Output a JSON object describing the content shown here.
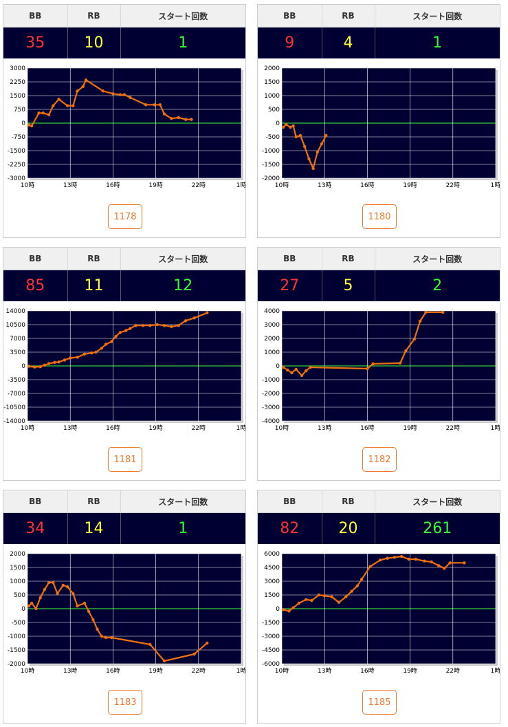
{
  "headers": {
    "bb": "BB",
    "rb": "RB",
    "start": "スタート回数"
  },
  "accent_colors": {
    "bb": "#ff3333",
    "rb": "#ffff33",
    "start": "#33ff33",
    "line": "#f07010",
    "zero_line": "#33cc33",
    "plot_bg": "#000033"
  },
  "x_ticks": [
    "10時",
    "13時",
    "16時",
    "19時",
    "22時",
    "1時"
  ],
  "panels": [
    {
      "bb": "35",
      "rb": "10",
      "start": "1",
      "machine": "1178"
    },
    {
      "bb": "9",
      "rb": "4",
      "start": "1",
      "machine": "1180"
    },
    {
      "bb": "85",
      "rb": "11",
      "start": "12",
      "machine": "1181"
    },
    {
      "bb": "27",
      "rb": "5",
      "start": "2",
      "machine": "1182"
    },
    {
      "bb": "34",
      "rb": "14",
      "start": "1",
      "machine": "1183"
    },
    {
      "bb": "82",
      "rb": "20",
      "start": "261",
      "machine": "1185"
    }
  ],
  "chart_data": [
    {
      "type": "line",
      "xlim": [
        10,
        25
      ],
      "ylim": [
        -3000,
        3000
      ],
      "y_ticks": [
        "3000",
        "2250",
        "1500",
        "750",
        "0",
        "-750",
        "-1500",
        "-2250",
        "-3000"
      ],
      "x": [
        10.1,
        10.3,
        10.8,
        11.1,
        11.5,
        11.8,
        12.2,
        12.8,
        13.2,
        13.5,
        13.9,
        14.1,
        15.3,
        16.0,
        16.5,
        16.8,
        17.2,
        18.3,
        18.9,
        19.3,
        19.6,
        20.1,
        20.6,
        21.1,
        21.5
      ],
      "y": [
        -100,
        -150,
        550,
        550,
        450,
        950,
        1300,
        950,
        950,
        1750,
        2000,
        2350,
        1750,
        1600,
        1550,
        1550,
        1400,
        1000,
        1000,
        1000,
        500,
        250,
        300,
        200,
        200
      ]
    },
    {
      "type": "line",
      "xlim": [
        10,
        25
      ],
      "ylim": [
        -2000,
        2000
      ],
      "y_ticks": [
        "2000",
        "1500",
        "1000",
        "500",
        "0",
        "-500",
        "-1000",
        "-1500",
        "-2000"
      ],
      "x": [
        10.1,
        10.3,
        10.6,
        10.8,
        11.0,
        11.3,
        11.6,
        11.9,
        12.2,
        12.5,
        12.8,
        13.1
      ],
      "y": [
        -150,
        -50,
        -150,
        -100,
        -500,
        -450,
        -850,
        -1300,
        -1650,
        -1050,
        -750,
        -450
      ]
    },
    {
      "type": "line",
      "xlim": [
        10,
        25
      ],
      "ylim": [
        -14000,
        14000
      ],
      "y_ticks": [
        "14000",
        "10500",
        "7000",
        "3500",
        "0",
        "-3500",
        "-7000",
        "-10500",
        "-14000"
      ],
      "x": [
        10.1,
        10.5,
        10.9,
        11.2,
        11.5,
        11.9,
        12.2,
        12.6,
        13.0,
        13.5,
        14.0,
        14.5,
        14.8,
        15.2,
        15.5,
        15.9,
        16.2,
        16.5,
        16.9,
        17.2,
        17.6,
        18.1,
        18.6,
        19.1,
        19.6,
        20.1,
        20.6,
        21.1,
        21.7,
        22.6
      ],
      "y": [
        -100,
        -300,
        -200,
        200,
        600,
        900,
        1000,
        1500,
        2000,
        2200,
        3000,
        3300,
        3500,
        4500,
        5500,
        6200,
        7500,
        8500,
        9000,
        9500,
        10300,
        10300,
        10300,
        10500,
        10300,
        10000,
        10300,
        11500,
        12200,
        13500
      ]
    },
    {
      "type": "line",
      "xlim": [
        10,
        25
      ],
      "ylim": [
        -4000,
        4000
      ],
      "y_ticks": [
        "4000",
        "3000",
        "2000",
        "1000",
        "0",
        "-1000",
        "-2000",
        "-3000",
        "-4000"
      ],
      "x": [
        10.1,
        10.4,
        10.7,
        11.0,
        11.4,
        11.7,
        12.0,
        16.0,
        16.4,
        18.3,
        18.7,
        19.3,
        19.7,
        20.1,
        21.3
      ],
      "y": [
        -100,
        -300,
        -500,
        -250,
        -700,
        -350,
        -100,
        -200,
        150,
        200,
        1100,
        1950,
        3250,
        3900,
        3900
      ]
    },
    {
      "type": "line",
      "xlim": [
        10,
        25
      ],
      "ylim": [
        -2000,
        2000
      ],
      "y_ticks": [
        "2000",
        "1500",
        "1000",
        "500",
        "0",
        "-500",
        "-1000",
        "-1500",
        "-2000"
      ],
      "x": [
        10.1,
        10.3,
        10.6,
        10.9,
        11.2,
        11.5,
        11.8,
        12.1,
        12.5,
        12.8,
        13.2,
        13.5,
        14.0,
        14.3,
        14.6,
        14.9,
        15.2,
        15.5,
        15.9,
        18.6,
        19.6,
        21.7,
        22.6
      ],
      "y": [
        100,
        200,
        0,
        400,
        700,
        950,
        950,
        550,
        850,
        800,
        550,
        100,
        200,
        -100,
        -400,
        -750,
        -1000,
        -1050,
        -1050,
        -1300,
        -1900,
        -1650,
        -1250
      ]
    },
    {
      "type": "line",
      "xlim": [
        10,
        25
      ],
      "ylim": [
        -6000,
        6000
      ],
      "y_ticks": [
        "6000",
        "4500",
        "3000",
        "1500",
        "0",
        "-1500",
        "-3000",
        "-4500",
        "-6000"
      ],
      "x": [
        10.1,
        10.5,
        10.8,
        11.2,
        11.7,
        12.1,
        12.6,
        13.0,
        13.5,
        14.0,
        14.5,
        14.9,
        15.3,
        15.6,
        16.2,
        16.9,
        17.4,
        17.9,
        18.4,
        18.9,
        19.4,
        20.0,
        20.5,
        21.0,
        21.4,
        21.8,
        22.8
      ],
      "y": [
        -100,
        -250,
        100,
        600,
        1000,
        900,
        1500,
        1400,
        1300,
        700,
        1300,
        1900,
        2500,
        3200,
        4600,
        5300,
        5500,
        5600,
        5700,
        5400,
        5400,
        5200,
        5100,
        4700,
        4400,
        5000,
        5000
      ]
    }
  ]
}
